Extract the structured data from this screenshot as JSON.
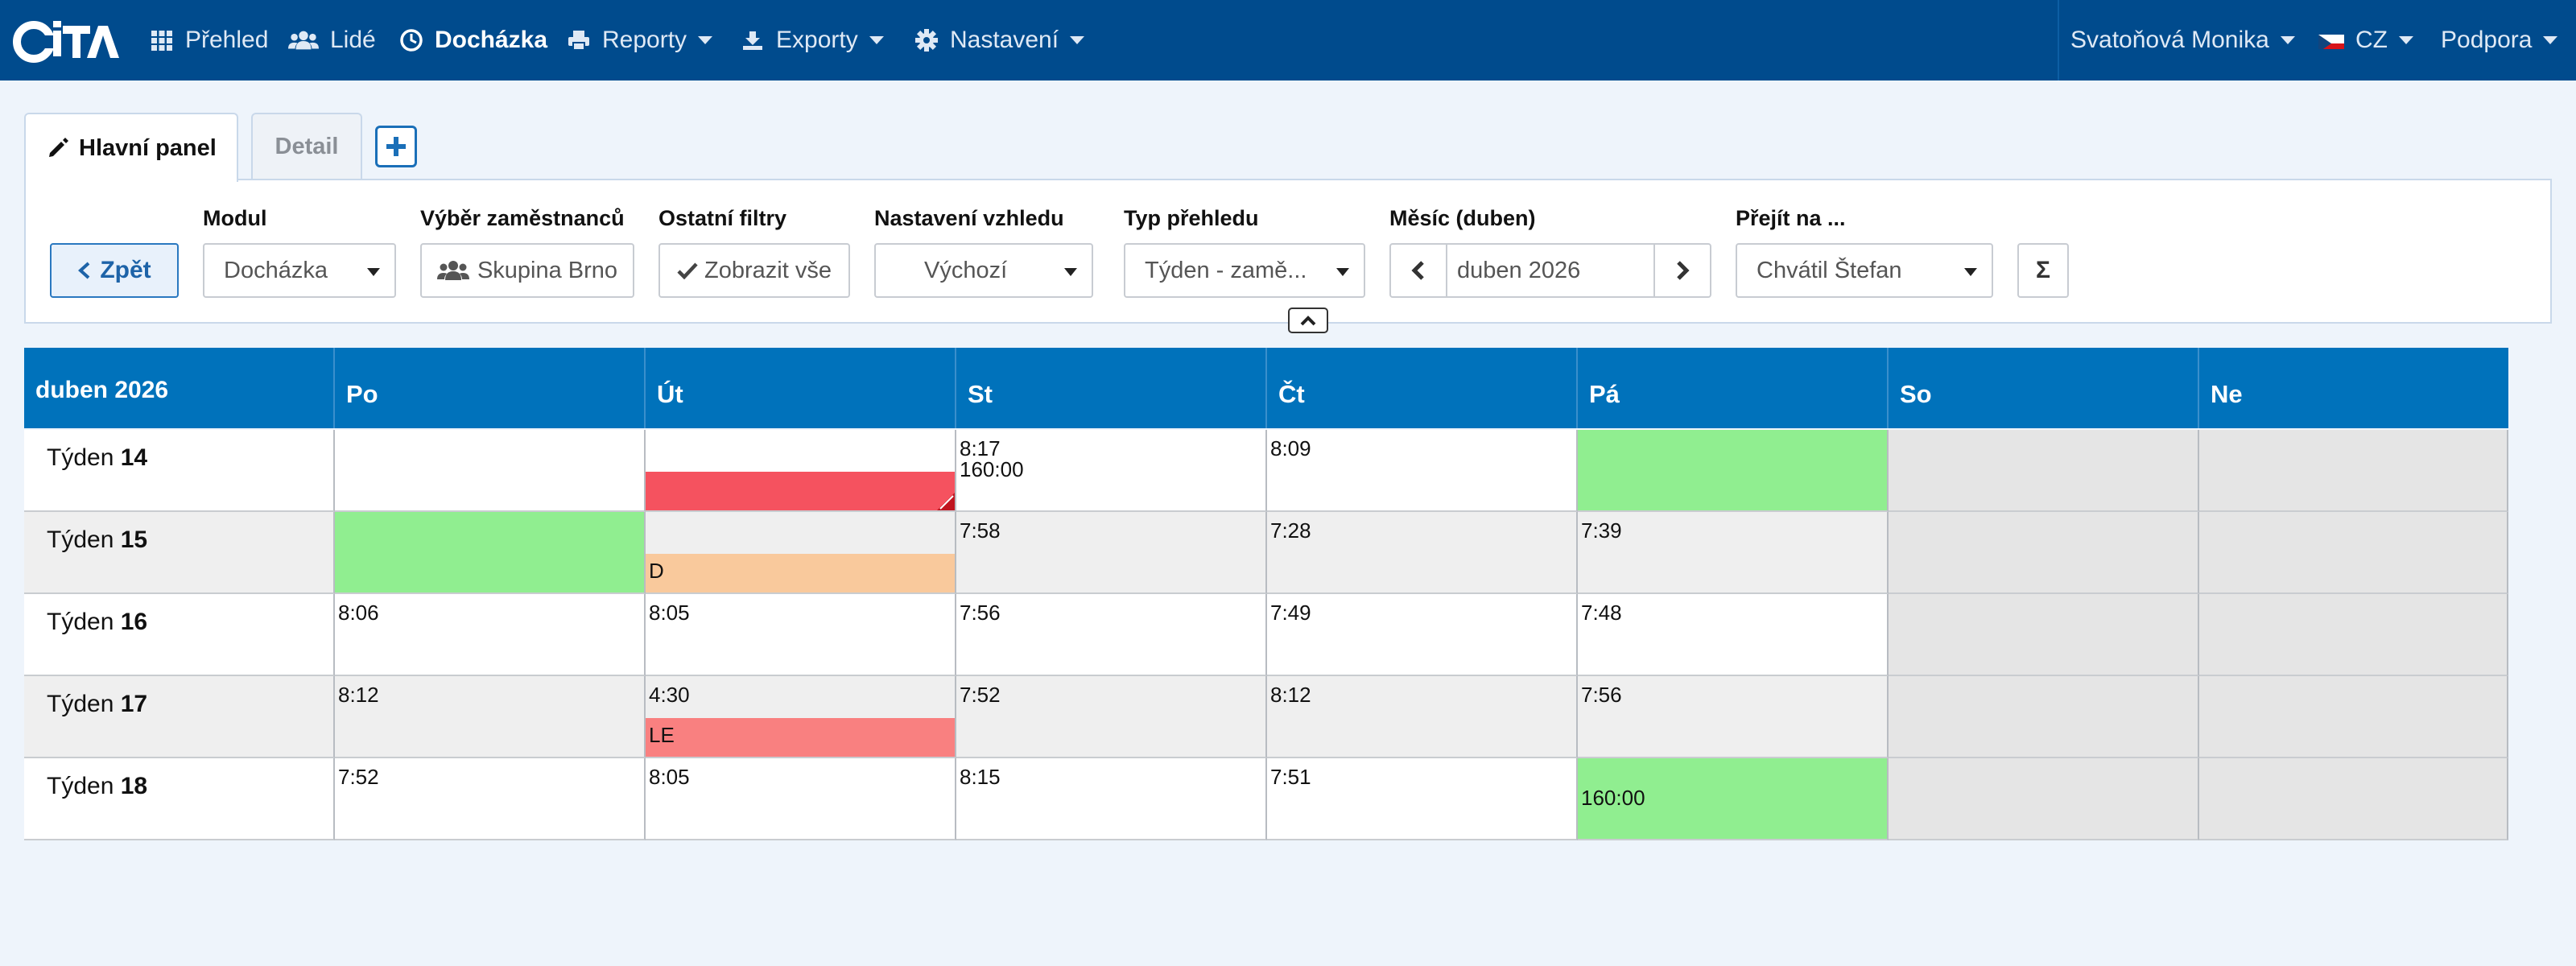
{
  "nav": {
    "items": [
      {
        "label": "Přehled",
        "icon": "grid-icon",
        "active": false,
        "caret": false
      },
      {
        "label": "Lidé",
        "icon": "users-icon",
        "active": false,
        "caret": false
      },
      {
        "label": "Docházka",
        "icon": "clock-icon",
        "active": true,
        "caret": false
      },
      {
        "label": "Reporty",
        "icon": "printer-icon",
        "active": false,
        "caret": true
      },
      {
        "label": "Exporty",
        "icon": "export-icon",
        "active": false,
        "caret": true
      },
      {
        "label": "Nastavení",
        "icon": "gear-icon",
        "active": false,
        "caret": true
      }
    ],
    "user": "Svatoňová Monika",
    "language": "CZ",
    "support": "Podpora"
  },
  "tabs": {
    "main": "Hlavní panel",
    "detail": "Detail"
  },
  "filters": {
    "back": "Zpět",
    "modul_label": "Modul",
    "modul_value": "Docházka",
    "employees_label": "Výběr zaměstnanců",
    "employees_value": "Skupina Brno",
    "other_label": "Ostatní filtry",
    "other_value": "Zobrazit vše",
    "view_label": "Nastavení vzhledu",
    "view_value": "Výchozí",
    "type_label": "Typ přehledu",
    "type_value": "Týden - zamě...",
    "month_label": "Měsíc (duben)",
    "month_value": "duben 2026",
    "goto_label": "Přejít na ...",
    "goto_value": "Chvátil Štefan",
    "sum_symbol": "Σ"
  },
  "calendar": {
    "title": "duben 2026",
    "week_prefix": "Týden",
    "days": [
      "Po",
      "Út",
      "St",
      "Čt",
      "Pá",
      "So",
      "Ne"
    ],
    "weeks": [
      {
        "number": "14",
        "cells": [
          {
            "kind": "empty"
          },
          {
            "kind": "bar",
            "color": "#f5525f",
            "text": "",
            "corner": true
          },
          {
            "kind": "text",
            "text": "8:17",
            "text2": "160:00"
          },
          {
            "kind": "text",
            "text": "8:09"
          },
          {
            "kind": "green"
          },
          {
            "kind": "weekend"
          },
          {
            "kind": "weekend"
          }
        ]
      },
      {
        "number": "15",
        "cells": [
          {
            "kind": "green"
          },
          {
            "kind": "bar",
            "color": "#f9c99c",
            "text": "D"
          },
          {
            "kind": "text",
            "text": "7:58"
          },
          {
            "kind": "text",
            "text": "7:28"
          },
          {
            "kind": "text",
            "text": "7:39"
          },
          {
            "kind": "weekend"
          },
          {
            "kind": "weekend"
          }
        ]
      },
      {
        "number": "16",
        "cells": [
          {
            "kind": "text",
            "text": "8:06"
          },
          {
            "kind": "text",
            "text": "8:05"
          },
          {
            "kind": "text",
            "text": "7:56"
          },
          {
            "kind": "text",
            "text": "7:49"
          },
          {
            "kind": "text",
            "text": "7:48"
          },
          {
            "kind": "weekend"
          },
          {
            "kind": "weekend"
          }
        ]
      },
      {
        "number": "17",
        "cells": [
          {
            "kind": "text",
            "text": "8:12"
          },
          {
            "kind": "bar",
            "color": "#f98080",
            "text": "LE",
            "text_top": "4:30"
          },
          {
            "kind": "text",
            "text": "7:52"
          },
          {
            "kind": "text",
            "text": "8:12"
          },
          {
            "kind": "text",
            "text": "7:56"
          },
          {
            "kind": "weekend"
          },
          {
            "kind": "weekend"
          }
        ]
      },
      {
        "number": "18",
        "cells": [
          {
            "kind": "text",
            "text": "7:52"
          },
          {
            "kind": "text",
            "text": "8:05"
          },
          {
            "kind": "text",
            "text": "8:15"
          },
          {
            "kind": "text",
            "text": "7:51"
          },
          {
            "kind": "greentext",
            "text": "160:00"
          },
          {
            "kind": "weekend"
          },
          {
            "kind": "weekend"
          }
        ]
      }
    ]
  },
  "colors": {
    "navbar": "#004b8d",
    "header": "#0072bb",
    "green": "#90ee90",
    "weekend": "#e5e5e5",
    "row_alt": "#efefef"
  }
}
